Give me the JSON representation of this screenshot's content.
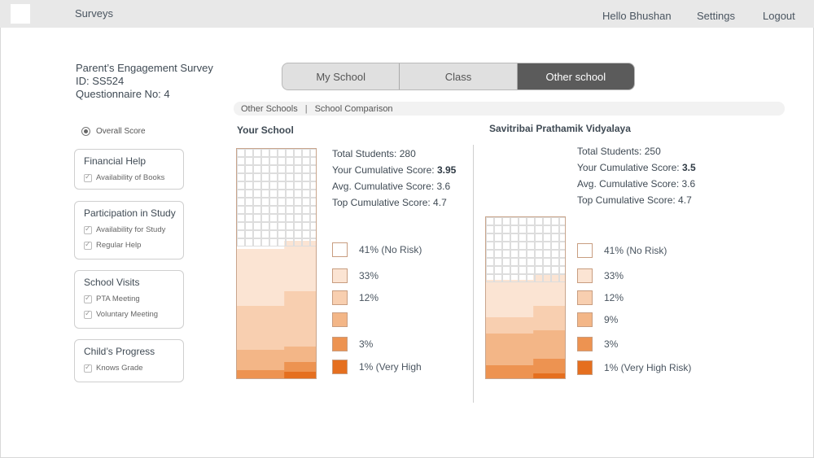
{
  "app": {
    "title": "Surveys"
  },
  "nav": {
    "greeting": "Hello Bhushan",
    "settings": "Settings",
    "logout": "Logout"
  },
  "survey": {
    "name": "Parent’s Engagement Survey",
    "id": "ID: SS524",
    "questionnaire": "Questionnaire No: 4"
  },
  "overall_score_label": "Overall Score",
  "filters": [
    {
      "title": "Financial Help",
      "items": [
        "Availability of Books"
      ]
    },
    {
      "title": "Participation in Study",
      "items": [
        "Availability for Study",
        "Regular Help"
      ]
    },
    {
      "title": "School Visits",
      "items": [
        "PTA Meeting",
        "Voluntary Meeting"
      ]
    },
    {
      "title": "Child’s Progress",
      "items": [
        "Knows Grade"
      ]
    }
  ],
  "tabs": [
    "My School",
    "Class",
    "Other school"
  ],
  "active_tab": "Other school",
  "breadcrumb": [
    "Other Schools",
    "School Comparison"
  ],
  "schools": [
    {
      "name": "Your School",
      "stats": {
        "total": "Total Students: 280",
        "cum_label": "Your Cumulative Score: ",
        "cum_value": "3.95",
        "avg": "Avg. Cumulative Score: 3.6",
        "top": "Top Cumulative Score: 4.7"
      },
      "legend": [
        "41% (No Risk)",
        "33%",
        "12%",
        "",
        "3%",
        "1% (Very High"
      ],
      "fill_levels": [
        1,
        0.6,
        0.38,
        0.14,
        0.07,
        0.03
      ]
    },
    {
      "name": "Savitribai Prathamik Vidyalaya",
      "stats": {
        "total": "Total Students: 250",
        "cum_label": "Your Cumulative Score: ",
        "cum_value": "3.5",
        "avg": "Avg. Cumulative Score: 3.6",
        "top": "Top Cumulative Score: 4.7"
      },
      "legend": [
        "41% (No Risk)",
        "33%",
        "12%",
        "9%",
        "3%",
        "1% (Very High Risk)"
      ],
      "fill_levels": [
        1,
        0.65,
        0.45,
        0.3,
        0.12,
        0.03
      ]
    }
  ],
  "risk_colors": [
    "#ffffff",
    "#fbe4d3",
    "#f8cfb0",
    "#f3b687",
    "#ed9351",
    "#e56f1f"
  ]
}
